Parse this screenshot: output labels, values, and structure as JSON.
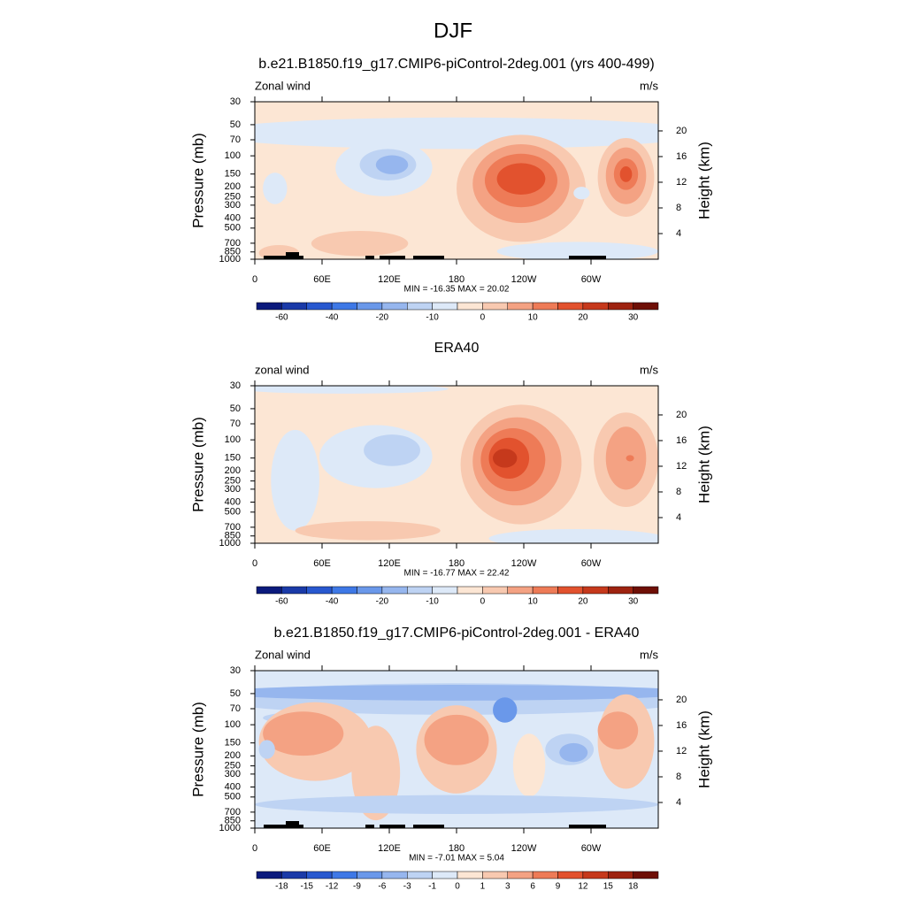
{
  "title": "DJF",
  "chart_data": [
    {
      "type": "contour",
      "title": "b.e21.B1850.f19_g17.CMIP6-piControl-2deg.001 (yrs 400-499)",
      "left_label": "Zonal wind",
      "right_label": "m/s",
      "ylabel": "Pressure (mb)",
      "y2label": "Height (km)",
      "xlim": [
        0,
        360
      ],
      "xticks": [
        0,
        {
          "value": 60,
          "label": "60E"
        },
        {
          "value": 120,
          "label": "120E"
        },
        180,
        {
          "value": 240,
          "label": "120W"
        },
        {
          "value": 300,
          "label": "60W"
        }
      ],
      "ylim": [
        30,
        1000
      ],
      "ylog": true,
      "yticks": [
        30,
        50,
        70,
        100,
        150,
        200,
        250,
        300,
        400,
        500,
        700,
        850,
        1000
      ],
      "y2ticks": [
        4,
        8,
        12,
        16,
        20
      ],
      "stats": "MIN = -16.35  MAX =  20.02",
      "colorbar": {
        "colors": [
          "#0b1a7c",
          "#1a3aa8",
          "#2858cf",
          "#3e78e6",
          "#6a98ea",
          "#96b6ee",
          "#bed3f3",
          "#dde9f8",
          "#fce6d4",
          "#f8c9b0",
          "#f4a283",
          "#ee7b57",
          "#e2522e",
          "#c6391c",
          "#9e2310",
          "#6e0f06"
        ],
        "levels": [
          -60,
          null,
          -40,
          null,
          -20,
          null,
          -10,
          null,
          0,
          null,
          10,
          null,
          20,
          null,
          30
        ]
      }
    },
    {
      "type": "contour",
      "title": "ERA40",
      "left_label": "zonal wind",
      "right_label": "m/s",
      "ylabel": "Pressure (mb)",
      "y2label": "Height (km)",
      "xlim": [
        0,
        360
      ],
      "xticks": [
        0,
        {
          "value": 60,
          "label": "60E"
        },
        {
          "value": 120,
          "label": "120E"
        },
        180,
        {
          "value": 240,
          "label": "120W"
        },
        {
          "value": 300,
          "label": "60W"
        }
      ],
      "ylim": [
        30,
        1000
      ],
      "ylog": true,
      "yticks": [
        30,
        50,
        70,
        100,
        150,
        200,
        250,
        300,
        400,
        500,
        700,
        850,
        1000
      ],
      "y2ticks": [
        4,
        8,
        12,
        16,
        20
      ],
      "stats": "MIN = -16.77  MAX =  22.42",
      "colorbar": {
        "colors": [
          "#0b1a7c",
          "#1a3aa8",
          "#2858cf",
          "#3e78e6",
          "#6a98ea",
          "#96b6ee",
          "#bed3f3",
          "#dde9f8",
          "#fce6d4",
          "#f8c9b0",
          "#f4a283",
          "#ee7b57",
          "#e2522e",
          "#c6391c",
          "#9e2310",
          "#6e0f06"
        ],
        "levels": [
          -60,
          null,
          -40,
          null,
          -20,
          null,
          -10,
          null,
          0,
          null,
          10,
          null,
          20,
          null,
          30
        ]
      }
    },
    {
      "type": "contour",
      "title": "b.e21.B1850.f19_g17.CMIP6-piControl-2deg.001 - ERA40",
      "left_label": "Zonal wind",
      "right_label": "m/s",
      "ylabel": "Pressure (mb)",
      "y2label": "Height (km)",
      "xlim": [
        0,
        360
      ],
      "xticks": [
        0,
        {
          "value": 60,
          "label": "60E"
        },
        {
          "value": 120,
          "label": "120E"
        },
        180,
        {
          "value": 240,
          "label": "120W"
        },
        {
          "value": 300,
          "label": "60W"
        }
      ],
      "ylim": [
        30,
        1000
      ],
      "ylog": true,
      "yticks": [
        30,
        50,
        70,
        100,
        150,
        200,
        250,
        300,
        400,
        500,
        700,
        850,
        1000
      ],
      "y2ticks": [
        4,
        8,
        12,
        16,
        20
      ],
      "stats": "MIN = -7.01  MAX =  5.04",
      "colorbar": {
        "colors": [
          "#0b1a7c",
          "#1a3aa8",
          "#2858cf",
          "#3e78e6",
          "#6a98ea",
          "#96b6ee",
          "#bed3f3",
          "#dde9f8",
          "#fce6d4",
          "#f8c9b0",
          "#f4a283",
          "#ee7b57",
          "#e2522e",
          "#c6391c",
          "#9e2310",
          "#6e0f06"
        ],
        "levels": [
          -18,
          -15,
          -12,
          -9,
          -6,
          -3,
          -1,
          0,
          1,
          3,
          6,
          9,
          12,
          15,
          18
        ]
      }
    }
  ]
}
